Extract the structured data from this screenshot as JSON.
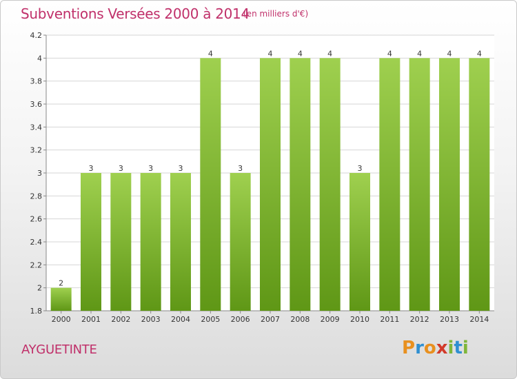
{
  "header": {
    "title": "Subventions Versées 2000 à 2014",
    "unit": "(en milliers d'€)"
  },
  "footer": {
    "commune": "AYGUETINTE",
    "logo": {
      "letters": [
        "P",
        "r",
        "o",
        "x",
        "i",
        "t",
        "i"
      ],
      "colors": [
        "#e8901f",
        "#2f8fd1",
        "#e8901f",
        "#d23a2a",
        "#7fb63a",
        "#2f8fd1",
        "#7fb63a"
      ]
    }
  },
  "colors": {
    "bar_light": "#9fd04f",
    "bar_dark": "#5f9716",
    "grid": "#d6d6d6",
    "text_accent": "#c0306a"
  },
  "chart_data": {
    "type": "bar",
    "title": "Subventions Versées 2000 à 2014",
    "subtitle": "(en milliers d'€)",
    "xlabel": "",
    "ylabel": "",
    "categories": [
      "2000",
      "2001",
      "2002",
      "2003",
      "2004",
      "2005",
      "2006",
      "2007",
      "2008",
      "2009",
      "2010",
      "2011",
      "2012",
      "2013",
      "2014"
    ],
    "values": [
      2,
      3,
      3,
      3,
      3,
      4,
      3,
      4,
      4,
      4,
      3,
      4,
      4,
      4,
      4
    ],
    "data_labels": [
      "2",
      "3",
      "3",
      "3",
      "3",
      "4",
      "3",
      "4",
      "4",
      "4",
      "3",
      "4",
      "4",
      "4",
      "4"
    ],
    "ylim": [
      1.8,
      4.2
    ],
    "yticks": [
      1.8,
      2,
      2.2,
      2.4,
      2.6,
      2.8,
      3,
      3.2,
      3.4,
      3.6,
      3.8,
      4,
      4.2
    ],
    "ytick_labels": [
      "1.8",
      "2",
      "2.2",
      "2.4",
      "2.6",
      "2.8",
      "3",
      "3.2",
      "3.4",
      "3.6",
      "3.8",
      "4",
      "4.2"
    ],
    "grid": true,
    "legend": "none"
  }
}
